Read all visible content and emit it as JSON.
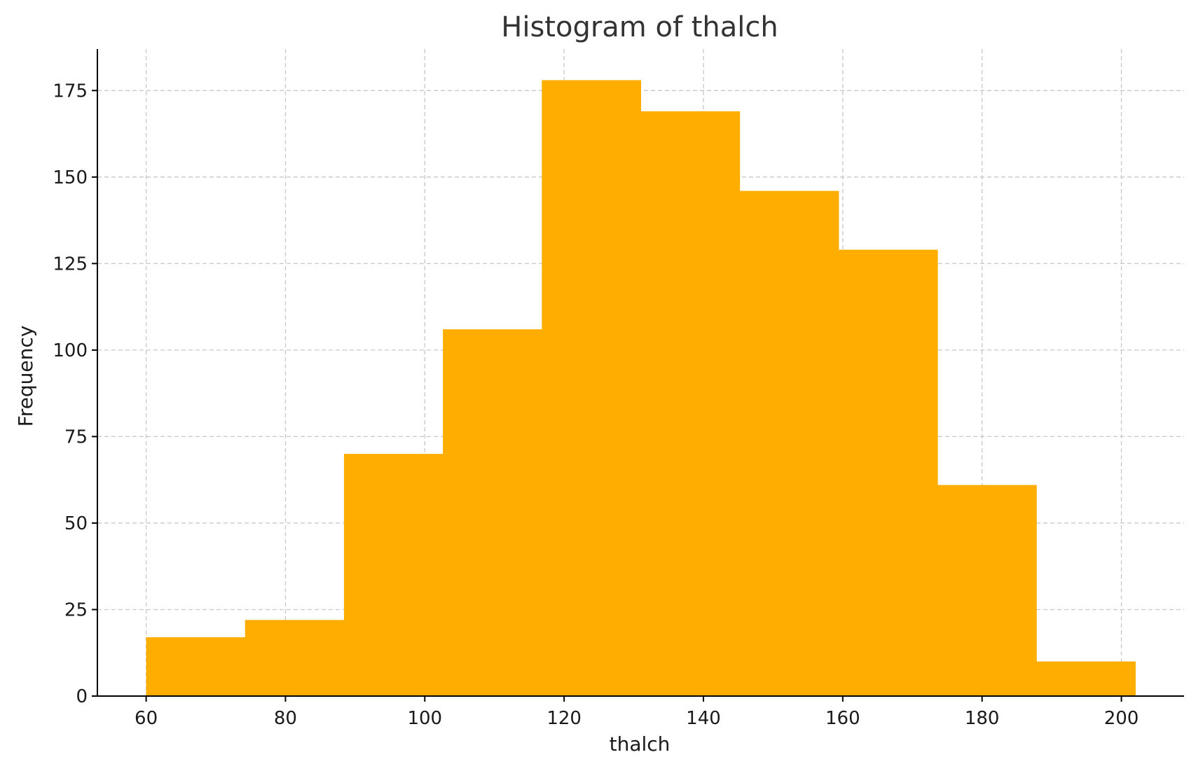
{
  "chart_data": {
    "type": "bar",
    "title": "Histogram of thalch",
    "xlabel": "thalch",
    "ylabel": "Frequency",
    "bin_edges": [
      60,
      74.2,
      88.4,
      102.6,
      116.8,
      131,
      145.2,
      159.4,
      173.6,
      187.8,
      202
    ],
    "values": [
      17,
      22,
      70,
      106,
      178,
      169,
      146,
      129,
      61,
      10
    ],
    "xlim": [
      53,
      209
    ],
    "ylim": [
      0,
      187
    ],
    "xticks": [
      60,
      80,
      100,
      120,
      140,
      160,
      180,
      200
    ],
    "yticks": [
      0,
      25,
      50,
      75,
      100,
      125,
      150,
      175
    ],
    "grid": true,
    "bar_color": "#FFAE00"
  }
}
